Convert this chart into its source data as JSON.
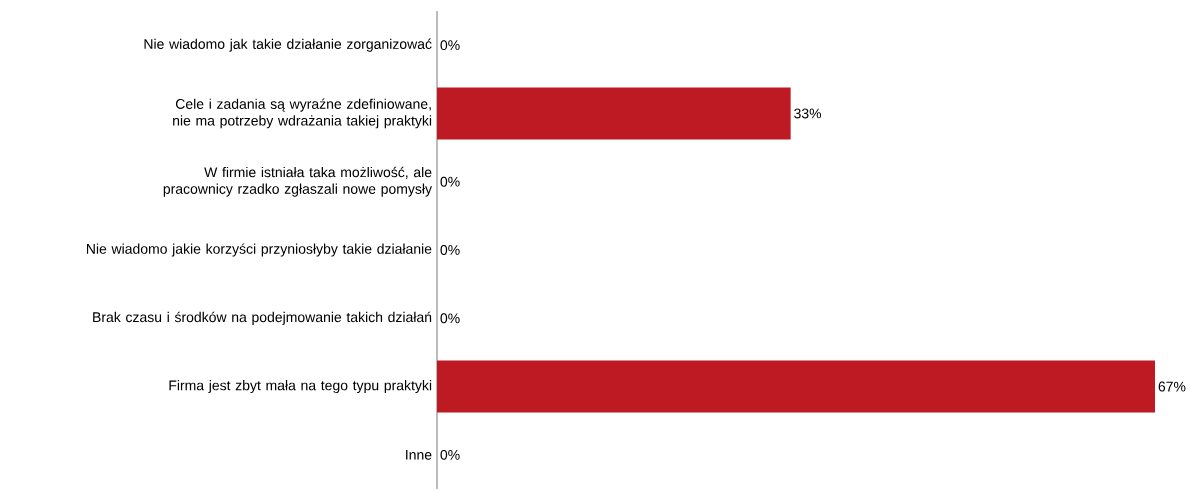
{
  "chart_data": {
    "type": "bar",
    "orientation": "horizontal",
    "categories": [
      "Nie wiadomo jak takie działanie zorganizować",
      "Cele i zadania są wyraźne zdefiniowane, nie ma potrzeby wdrażania takiej praktyki",
      "W firmie istniała taka możliwość, ale pracownicy rzadko zgłaszali nowe pomysły",
      "Nie wiadomo jakie korzyści przyniosłyby takie działanie",
      "Brak czasu i środków na podejmowanie takich działań",
      "Firma jest zbyt mała na tego typu praktyki",
      "Inne"
    ],
    "values": [
      0,
      33,
      0,
      0,
      0,
      67,
      0
    ],
    "value_labels": [
      "0%",
      "33%",
      "0%",
      "0%",
      "0%",
      "67%",
      "0%"
    ],
    "color": "#be1a24"
  }
}
